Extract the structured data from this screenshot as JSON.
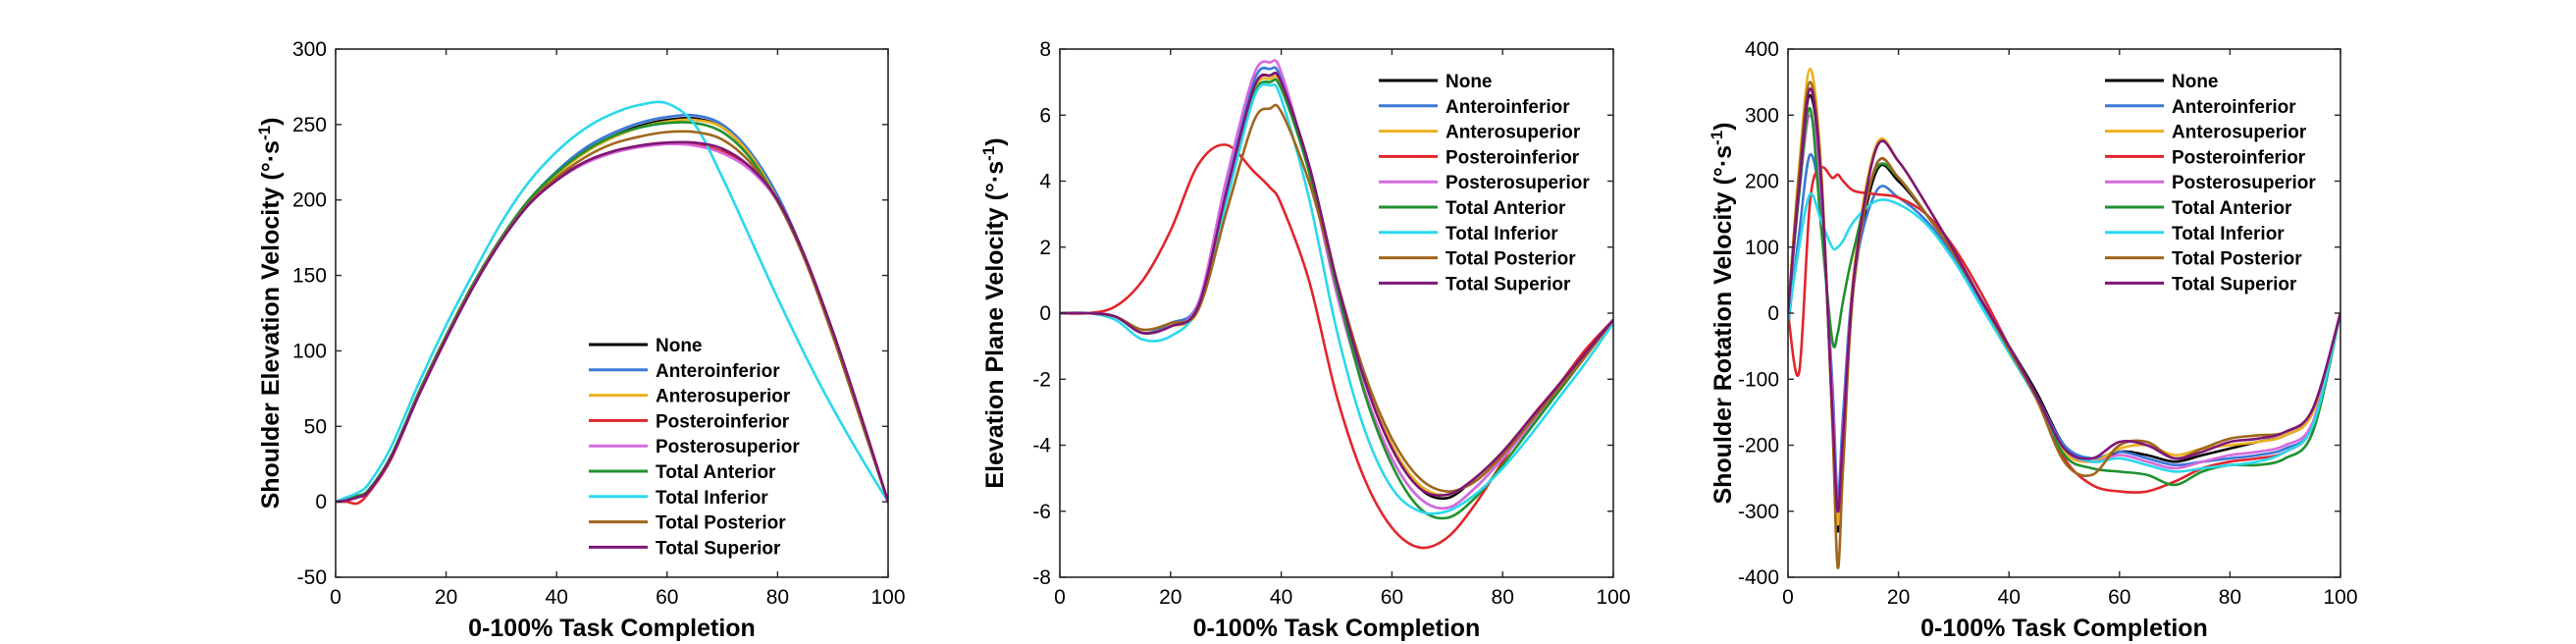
{
  "chart_data": [
    {
      "type": "line",
      "xlabel": "0-100% Task Completion",
      "ylabel": "Shoulder Elevation Velocity (°·s-1)",
      "ylabel_parts": {
        "main": "Shoulder Elevation Velocity (°·s",
        "sup": "-1",
        "tail": ")"
      },
      "xlim": [
        0,
        100
      ],
      "ylim": [
        -50,
        300
      ],
      "xticks": [
        "0",
        "20",
        "40",
        "60",
        "80",
        "100"
      ],
      "yticks": [
        "-50",
        "0",
        "50",
        "100",
        "150",
        "200",
        "250",
        "300"
      ],
      "legend_position": "bottom-right",
      "x": [
        0,
        2,
        4,
        6,
        10,
        15,
        20,
        25,
        30,
        35,
        40,
        45,
        50,
        55,
        60,
        65,
        70,
        75,
        80,
        85,
        90,
        95,
        100
      ],
      "series": [
        {
          "name": "None",
          "color": "#000000",
          "values": [
            0,
            2,
            4,
            8,
            30,
            72,
            110,
            145,
            175,
            200,
            218,
            232,
            242,
            249,
            253,
            254,
            248,
            230,
            200,
            160,
            110,
            55,
            0
          ]
        },
        {
          "name": "Anteroinferior",
          "color": "#3b78d8",
          "values": [
            0,
            2,
            3,
            8,
            30,
            72,
            110,
            145,
            175,
            200,
            219,
            234,
            244,
            251,
            255,
            256,
            250,
            232,
            203,
            162,
            112,
            57,
            0
          ]
        },
        {
          "name": "Anterosuperior",
          "color": "#ecb01f",
          "values": [
            0,
            2,
            4,
            8,
            30,
            71,
            109,
            144,
            174,
            199,
            217,
            231,
            241,
            248,
            252,
            253,
            248,
            230,
            200,
            160,
            110,
            55,
            0
          ]
        },
        {
          "name": "Posteroinferior",
          "color": "#e0262c",
          "values": [
            0,
            0,
            -1,
            6,
            28,
            70,
            108,
            144,
            174,
            198,
            214,
            225,
            232,
            236,
            238,
            237,
            232,
            222,
            200,
            162,
            112,
            57,
            0
          ]
        },
        {
          "name": "Posterosuperior",
          "color": "#d669de",
          "values": [
            0,
            1,
            3,
            7,
            29,
            70,
            108,
            143,
            173,
            197,
            213,
            224,
            231,
            235,
            237,
            236,
            231,
            220,
            199,
            160,
            111,
            56,
            0
          ]
        },
        {
          "name": "Total Anterior",
          "color": "#20912f",
          "values": [
            0,
            2,
            4,
            8,
            30,
            72,
            110,
            145,
            175,
            200,
            218,
            232,
            242,
            248,
            251,
            251,
            245,
            228,
            199,
            160,
            110,
            55,
            0
          ]
        },
        {
          "name": "Total Inferior",
          "color": "#2ad8ec",
          "values": [
            0,
            3,
            6,
            12,
            36,
            78,
            117,
            152,
            185,
            212,
            232,
            247,
            257,
            263,
            264,
            250,
            215,
            175,
            135,
            97,
            62,
            30,
            0
          ]
        },
        {
          "name": "Total Posterior",
          "color": "#a0661c",
          "values": [
            0,
            1,
            3,
            7,
            29,
            71,
            109,
            144,
            174,
            198,
            215,
            228,
            237,
            242,
            245,
            245,
            240,
            225,
            199,
            160,
            110,
            55,
            0
          ]
        },
        {
          "name": "Total Superior",
          "color": "#7e1676",
          "values": [
            0,
            1,
            3,
            7,
            29,
            70,
            108,
            143,
            173,
            197,
            213,
            225,
            232,
            236,
            238,
            238,
            234,
            222,
            200,
            162,
            113,
            58,
            0
          ]
        }
      ]
    },
    {
      "type": "line",
      "xlabel": "0-100% Task Completion",
      "ylabel": "Elevation Plane Velocity (°·s-1)",
      "ylabel_parts": {
        "main": "Elevation Plane Velocity (°·s",
        "sup": "-1",
        "tail": ")"
      },
      "xlim": [
        0,
        100
      ],
      "ylim": [
        -8,
        8
      ],
      "xticks": [
        "0",
        "20",
        "40",
        "60",
        "80",
        "100"
      ],
      "yticks": [
        "-8",
        "-6",
        "-4",
        "-2",
        "0",
        "2",
        "4",
        "6",
        "8"
      ],
      "legend_position": "top-right",
      "x": [
        0,
        5,
        10,
        15,
        20,
        25,
        30,
        35,
        38,
        40,
        45,
        50,
        55,
        60,
        65,
        70,
        75,
        80,
        85,
        90,
        95,
        100
      ],
      "series": [
        {
          "name": "None",
          "color": "#000000",
          "values": [
            0,
            0,
            -0.1,
            -0.6,
            -0.4,
            0.2,
            3.5,
            6.8,
            7.2,
            7.0,
            4.5,
            1.0,
            -2.0,
            -4.0,
            -5.3,
            -5.6,
            -5.0,
            -4.2,
            -3.2,
            -2.2,
            -1.2,
            -0.2
          ]
        },
        {
          "name": "Anteroinferior",
          "color": "#3b78d8",
          "values": [
            0,
            0,
            -0.1,
            -0.6,
            -0.3,
            0.3,
            3.7,
            7.0,
            7.4,
            7.1,
            4.4,
            0.8,
            -2.3,
            -4.4,
            -5.6,
            -5.9,
            -5.3,
            -4.4,
            -3.4,
            -2.4,
            -1.3,
            -0.2
          ]
        },
        {
          "name": "Anterosuperior",
          "color": "#ecb01f",
          "values": [
            0,
            0,
            -0.1,
            -0.6,
            -0.4,
            0.1,
            3.4,
            6.7,
            7.1,
            6.9,
            4.4,
            1.0,
            -2.0,
            -4.0,
            -5.2,
            -5.5,
            -5.0,
            -4.2,
            -3.2,
            -2.2,
            -1.2,
            -0.2
          ]
        },
        {
          "name": "Posteroinferior",
          "color": "#e0262c",
          "values": [
            0,
            0,
            0.2,
            1.0,
            2.5,
            4.5,
            5.1,
            4.3,
            3.8,
            3.3,
            1.0,
            -2.5,
            -5.0,
            -6.5,
            -7.1,
            -6.8,
            -5.8,
            -4.5,
            -3.2,
            -2.2,
            -1.1,
            -0.2
          ]
        },
        {
          "name": "Posterosuperior",
          "color": "#d669de",
          "values": [
            0,
            0,
            -0.1,
            -0.6,
            -0.4,
            0.3,
            4.0,
            7.2,
            7.6,
            7.3,
            4.3,
            0.6,
            -2.3,
            -4.4,
            -5.6,
            -5.9,
            -5.3,
            -4.4,
            -3.4,
            -2.4,
            -1.3,
            -0.2
          ]
        },
        {
          "name": "Total Anterior",
          "color": "#20912f",
          "values": [
            0,
            0,
            -0.1,
            -0.6,
            -0.4,
            0.2,
            3.5,
            6.6,
            7.0,
            6.8,
            4.3,
            0.8,
            -2.4,
            -4.6,
            -5.9,
            -6.2,
            -5.6,
            -4.6,
            -3.5,
            -2.4,
            -1.3,
            -0.2
          ]
        },
        {
          "name": "Total Inferior",
          "color": "#2ad8ec",
          "values": [
            0,
            0,
            -0.2,
            -0.8,
            -0.7,
            0.2,
            3.3,
            6.5,
            6.9,
            6.5,
            3.5,
            -0.5,
            -3.5,
            -5.3,
            -6.0,
            -6.0,
            -5.5,
            -4.7,
            -3.7,
            -2.6,
            -1.5,
            -0.3
          ]
        },
        {
          "name": "Total Posterior",
          "color": "#a0661c",
          "values": [
            0,
            0,
            -0.1,
            -0.5,
            -0.3,
            0.1,
            3.0,
            5.8,
            6.2,
            6.1,
            4.0,
            1.0,
            -1.8,
            -3.8,
            -5.0,
            -5.4,
            -5.1,
            -4.3,
            -3.3,
            -2.3,
            -1.3,
            -0.2
          ]
        },
        {
          "name": "Total Superior",
          "color": "#7e1676",
          "values": [
            0,
            0,
            -0.1,
            -0.6,
            -0.4,
            0.2,
            3.6,
            6.8,
            7.2,
            7.0,
            4.5,
            1.0,
            -2.0,
            -4.1,
            -5.3,
            -5.5,
            -5.0,
            -4.2,
            -3.2,
            -2.2,
            -1.2,
            -0.2
          ]
        }
      ]
    },
    {
      "type": "line",
      "xlabel": "0-100% Task Completion",
      "ylabel": "Shoulder Rotation Velocity (°·s-1)",
      "ylabel_parts": {
        "main": "Shoulder Rotation Velocity (°·s",
        "sup": "-1",
        "tail": ")"
      },
      "xlim": [
        0,
        100
      ],
      "ylim": [
        -400,
        400
      ],
      "xticks": [
        "0",
        "20",
        "40",
        "60",
        "80",
        "100"
      ],
      "yticks": [
        "-400",
        "-300",
        "-200",
        "-100",
        "0",
        "100",
        "200",
        "300",
        "400"
      ],
      "legend_position": "top-right",
      "x": [
        0,
        2,
        4,
        6,
        8,
        9,
        10,
        12,
        16,
        20,
        25,
        30,
        35,
        40,
        45,
        50,
        55,
        60,
        65,
        70,
        75,
        80,
        85,
        90,
        95,
        100
      ],
      "series": [
        {
          "name": "None",
          "color": "#000000",
          "values": [
            0,
            200,
            330,
            200,
            -150,
            -330,
            -200,
            50,
            215,
            200,
            150,
            90,
            20,
            -50,
            -120,
            -200,
            -225,
            -210,
            -215,
            -225,
            -215,
            -205,
            -195,
            -185,
            -150,
            0
          ]
        },
        {
          "name": "Anteroinferior",
          "color": "#3b78d8",
          "values": [
            -20,
            120,
            240,
            150,
            -100,
            -280,
            -150,
            60,
            185,
            175,
            140,
            85,
            15,
            -55,
            -125,
            -200,
            -220,
            -210,
            -220,
            -230,
            -225,
            -220,
            -215,
            -205,
            -170,
            0
          ]
        },
        {
          "name": "Anterosuperior",
          "color": "#ecb01f",
          "values": [
            0,
            220,
            370,
            220,
            -150,
            -320,
            -180,
            70,
            255,
            230,
            165,
            95,
            20,
            -55,
            -130,
            -210,
            -225,
            -205,
            -200,
            -215,
            -205,
            -200,
            -195,
            -185,
            -150,
            0
          ]
        },
        {
          "name": "Posteroinferior",
          "color": "#e0262c",
          "values": [
            0,
            -90,
            170,
            220,
            205,
            210,
            200,
            185,
            180,
            175,
            150,
            100,
            30,
            -50,
            -130,
            -220,
            -260,
            -270,
            -270,
            -255,
            -235,
            -225,
            -220,
            -210,
            -170,
            0
          ]
        },
        {
          "name": "Posterosuperior",
          "color": "#d669de",
          "values": [
            0,
            180,
            300,
            180,
            -120,
            -300,
            -170,
            60,
            225,
            205,
            150,
            90,
            20,
            -50,
            -125,
            -205,
            -225,
            -215,
            -225,
            -235,
            -225,
            -215,
            -210,
            -200,
            -165,
            0
          ]
        },
        {
          "name": "Total Anterior",
          "color": "#20912f",
          "values": [
            0,
            180,
            310,
            130,
            -40,
            -30,
            20,
            100,
            220,
            205,
            150,
            90,
            20,
            -55,
            -130,
            -215,
            -235,
            -240,
            -245,
            -260,
            -240,
            -230,
            -230,
            -220,
            -180,
            0
          ]
        },
        {
          "name": "Total Inferior",
          "color": "#2ad8ec",
          "values": [
            -10,
            100,
            180,
            140,
            100,
            100,
            110,
            140,
            170,
            165,
            135,
            80,
            10,
            -60,
            -130,
            -205,
            -225,
            -220,
            -230,
            -240,
            -235,
            -230,
            -225,
            -210,
            -170,
            0
          ]
        },
        {
          "name": "Total Posterior",
          "color": "#a0661c",
          "values": [
            0,
            210,
            350,
            210,
            -160,
            -385,
            -230,
            50,
            225,
            205,
            150,
            90,
            20,
            -55,
            -130,
            -225,
            -245,
            -200,
            -195,
            -220,
            -205,
            -190,
            -185,
            -180,
            -145,
            0
          ]
        },
        {
          "name": "Total Superior",
          "color": "#7e1676",
          "values": [
            0,
            190,
            340,
            200,
            -140,
            -300,
            -180,
            60,
            250,
            230,
            165,
            95,
            20,
            -50,
            -125,
            -205,
            -220,
            -195,
            -200,
            -220,
            -210,
            -195,
            -190,
            -180,
            -145,
            0
          ]
        }
      ]
    }
  ]
}
